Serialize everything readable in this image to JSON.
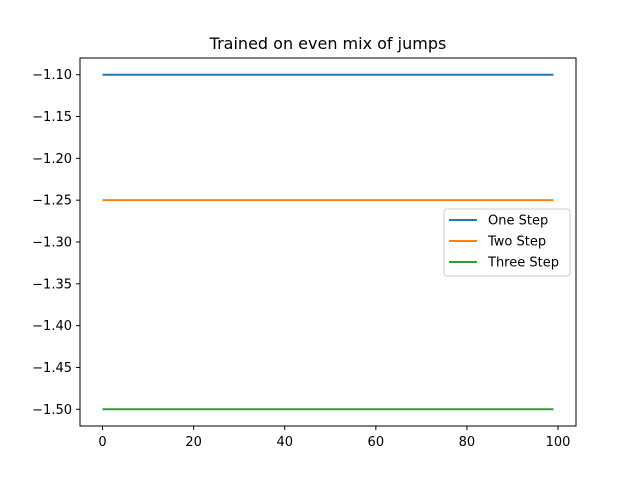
{
  "chart_data": {
    "type": "line",
    "title": "Trained on even mix of jumps",
    "xlabel": "",
    "ylabel": "",
    "xlim": [
      -4.95,
      103.95
    ],
    "ylim": [
      -1.52,
      -1.08
    ],
    "x_ticks": [
      0,
      20,
      40,
      60,
      80,
      100
    ],
    "x_tick_labels": [
      "0",
      "20",
      "40",
      "60",
      "80",
      "100"
    ],
    "y_ticks": [
      -1.1,
      -1.15,
      -1.2,
      -1.25,
      -1.3,
      -1.35,
      -1.4,
      -1.45,
      -1.5
    ],
    "y_tick_labels": [
      "−1.10",
      "−1.15",
      "−1.20",
      "−1.25",
      "−1.30",
      "−1.35",
      "−1.40",
      "−1.45",
      "−1.50"
    ],
    "grid": false,
    "legend_position": "center-right",
    "x": [
      0,
      99
    ],
    "series": [
      {
        "name": "One Step",
        "values": [
          -1.1,
          -1.1
        ],
        "color": "#1f77b4"
      },
      {
        "name": "Two Step",
        "values": [
          -1.25,
          -1.25
        ],
        "color": "#ff7f0e"
      },
      {
        "name": "Three Step",
        "values": [
          -1.5,
          -1.5
        ],
        "color": "#2ca02c"
      }
    ]
  }
}
